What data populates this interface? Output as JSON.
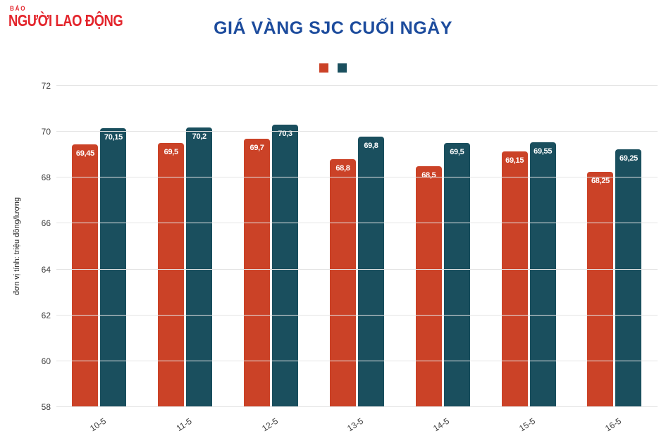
{
  "logo": {
    "top": "BÁO",
    "main": "NGƯỜI LAO ĐỘNG",
    "color": "#e3252c"
  },
  "title": "GIÁ VÀNG SJC CUỐI NGÀY",
  "title_color": "#1d4c9d",
  "chart_data": {
    "type": "bar",
    "title": "GIÁ VÀNG SJC CUỐI NGÀY",
    "categories": [
      "10-5",
      "11-5",
      "12-5",
      "13-5",
      "14-5",
      "15-5",
      "16-5"
    ],
    "series": [
      {
        "name": "series-1",
        "color": "#cb4227",
        "values": [
          69.45,
          69.5,
          69.7,
          68.8,
          68.5,
          69.15,
          68.25
        ],
        "labels": [
          "69,45",
          "69,5",
          "69,7",
          "68,8",
          "68,5",
          "69,15",
          "68,25"
        ]
      },
      {
        "name": "series-2",
        "color": "#1a4f5e",
        "values": [
          70.15,
          70.2,
          70.3,
          69.8,
          69.5,
          69.55,
          69.25
        ],
        "labels": [
          "70,15",
          "70,2",
          "70,3",
          "69,8",
          "69,5",
          "69,55",
          "69,25"
        ]
      }
    ],
    "xlabel": "",
    "ylabel": "đơn vị tính: triệu đồng/lượng",
    "ylim": [
      58,
      72
    ],
    "yticks": [
      58,
      60,
      62,
      64,
      66,
      68,
      70,
      72
    ],
    "grid": true,
    "legend_position": "top-center",
    "legend_labels": [
      "",
      ""
    ]
  }
}
